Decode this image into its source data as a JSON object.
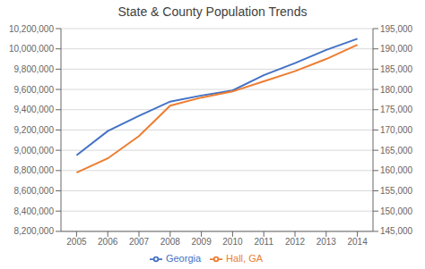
{
  "chart_data": {
    "type": "line",
    "title": "State & County Population Trends",
    "x": [
      2005,
      2006,
      2007,
      2008,
      2009,
      2010,
      2011,
      2012,
      2013,
      2014
    ],
    "xlim": [
      2004.5,
      2014.5
    ],
    "xticks": [
      2005,
      2006,
      2007,
      2008,
      2009,
      2010,
      2011,
      2012,
      2013,
      2014
    ],
    "series": [
      {
        "name": "Georgia",
        "color": "#4472C4",
        "values": [
          8950000,
          9190000,
          9340000,
          9480000,
          9540000,
          9590000,
          9740000,
          9860000,
          9990000,
          10100000
        ]
      },
      {
        "name": "Hall, GA",
        "color": "#ED7D31",
        "axis": "y2",
        "values": [
          159500,
          163000,
          168500,
          176000,
          178000,
          179500,
          182000,
          184500,
          187500,
          191000
        ]
      }
    ],
    "ylim": [
      8200000,
      10200000
    ],
    "yticks": [
      {
        "value": 8200000,
        "label": "8,200,000"
      },
      {
        "value": 8400000,
        "label": "8,400,000"
      },
      {
        "value": 8600000,
        "label": "8,600,000"
      },
      {
        "value": 8800000,
        "label": "8,800,000"
      },
      {
        "value": 9000000,
        "label": "9,000,000"
      },
      {
        "value": 9200000,
        "label": "9,200,000"
      },
      {
        "value": 9400000,
        "label": "9,400,000"
      },
      {
        "value": 9600000,
        "label": "9,600,000"
      },
      {
        "value": 9800000,
        "label": "9,800,000"
      },
      {
        "value": 10000000,
        "label": "10,000,000"
      },
      {
        "value": 10200000,
        "label": "10,200,000"
      }
    ],
    "y2lim": [
      145000,
      195000
    ],
    "y2ticks": [
      {
        "value": 145000,
        "label": "145,000"
      },
      {
        "value": 150000,
        "label": "150,000"
      },
      {
        "value": 155000,
        "label": "155,000"
      },
      {
        "value": 160000,
        "label": "160,000"
      },
      {
        "value": 165000,
        "label": "165,000"
      },
      {
        "value": 170000,
        "label": "170,000"
      },
      {
        "value": 175000,
        "label": "175,000"
      },
      {
        "value": 180000,
        "label": "180,000"
      },
      {
        "value": 185000,
        "label": "185,000"
      },
      {
        "value": 190000,
        "label": "190,000"
      },
      {
        "value": 195000,
        "label": "195,000"
      }
    ],
    "grid": true,
    "legend": "bottom"
  }
}
